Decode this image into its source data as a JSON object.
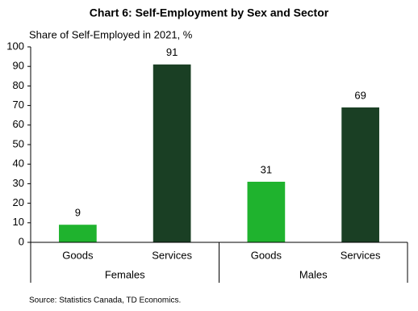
{
  "chart_data": {
    "type": "bar",
    "title": "Chart 6: Self-Employment by Sex and Sector",
    "subtitle": "Share of Self-Employed in 2021, %",
    "categories": [
      "Goods",
      "Services",
      "Goods",
      "Services"
    ],
    "groups": [
      "Females",
      "Males"
    ],
    "values": [
      9,
      91,
      31,
      69
    ],
    "colors": [
      "#1fb32e",
      "#1a3f24",
      "#1fb32e",
      "#1a3f24"
    ],
    "ylim": [
      0,
      100
    ],
    "yticks": [
      0,
      10,
      20,
      30,
      40,
      50,
      60,
      70,
      80,
      90,
      100
    ],
    "grid": false,
    "source": "Source: Statistics Canada, TD Economics."
  }
}
